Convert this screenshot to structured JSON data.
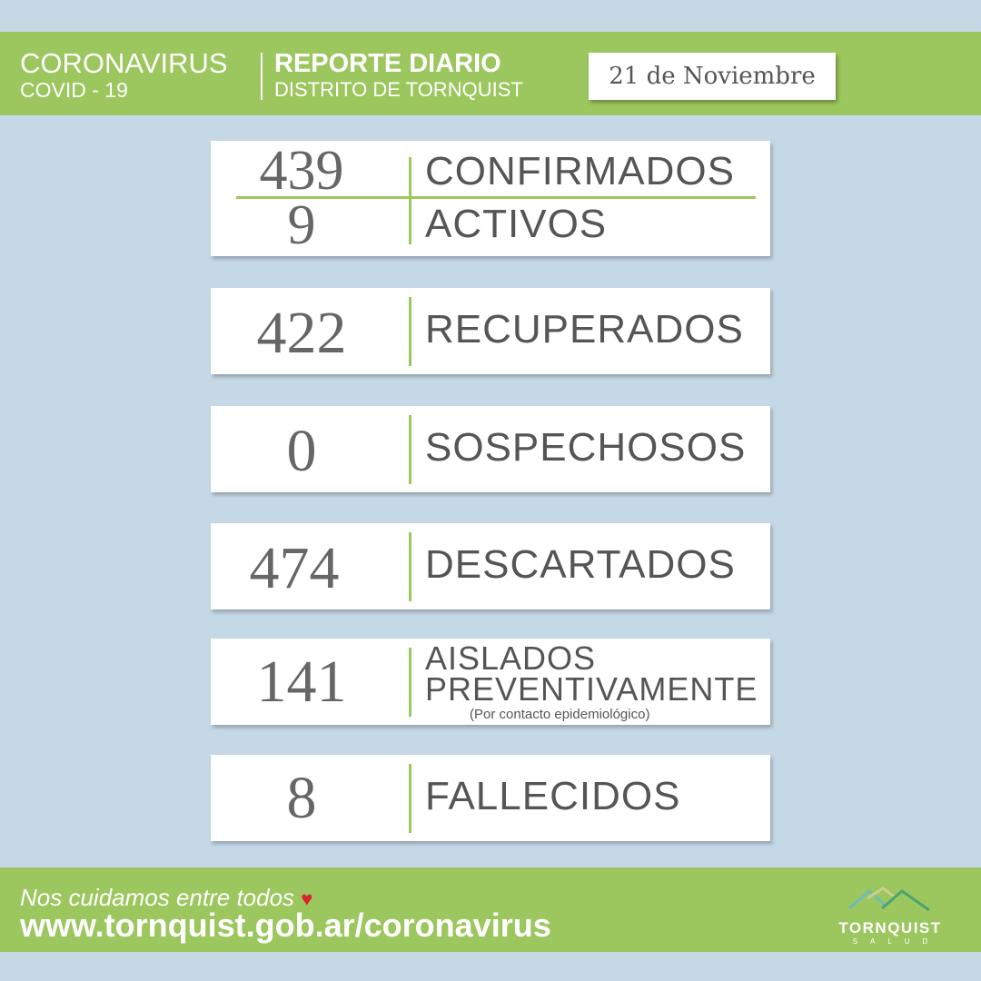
{
  "header": {
    "title": "CORONAVIRUS",
    "subtitle": "COVID - 19",
    "report_title": "REPORTE DIARIO",
    "district": "DISTRITO DE TORNQUIST",
    "date": "21 de Noviembre"
  },
  "stats": {
    "confirmados": {
      "value": "439",
      "label": "CONFIRMADOS"
    },
    "activos": {
      "value": "9",
      "label": "ACTIVOS"
    },
    "recuperados": {
      "value": "422",
      "label": "RECUPERADOS"
    },
    "sospechosos": {
      "value": "0",
      "label": "SOSPECHOSOS"
    },
    "descartados": {
      "value": "474",
      "label": "DESCARTADOS"
    },
    "aislados": {
      "value": "141",
      "label1": "AISLADOS",
      "label2": "PREVENTIVAMENTE",
      "note": "(Por contacto epidemiológico)"
    },
    "fallecidos": {
      "value": "8",
      "label": "FALLECIDOS"
    }
  },
  "footer": {
    "tagline": "Nos cuidamos entre todos",
    "heart_icon": "♥",
    "url": "www.tornquist.gob.ar/coronavirus",
    "logo_text": "TORNQUIST",
    "logo_sub": "SALUD"
  },
  "colors": {
    "green": "#9cc65e",
    "background": "#c4d8e6",
    "heart": "#d9232e"
  }
}
